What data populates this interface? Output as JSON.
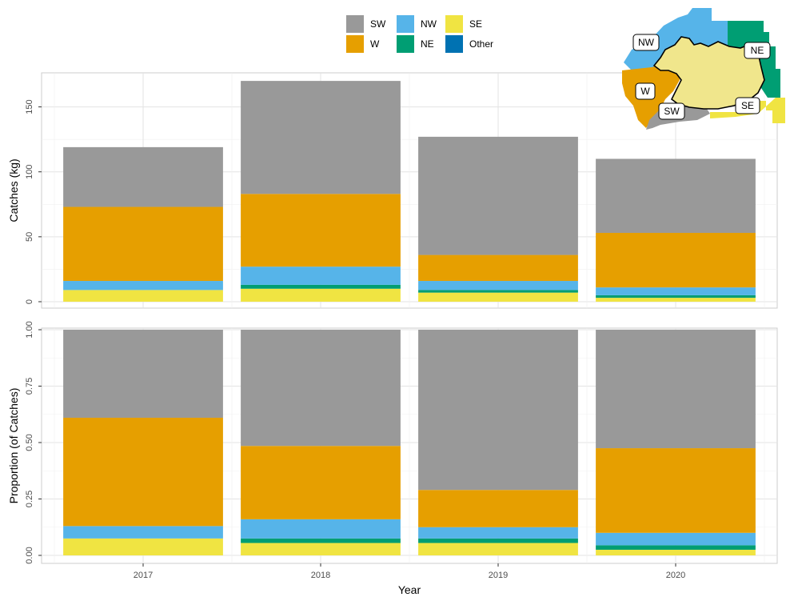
{
  "chart_data": [
    {
      "type": "bar",
      "stacked": true,
      "panel": "top",
      "categories": [
        "2017",
        "2018",
        "2019",
        "2020"
      ],
      "ylabel": "Catches (kg)",
      "ylim": [
        0,
        175
      ],
      "yticks": [
        0,
        50,
        100,
        150
      ],
      "grid": true,
      "series": [
        {
          "name": "SE",
          "values": [
            9,
            10,
            7,
            3
          ]
        },
        {
          "name": "NE",
          "values": [
            0,
            3,
            2,
            2
          ]
        },
        {
          "name": "NW",
          "values": [
            7,
            14,
            7,
            6
          ]
        },
        {
          "name": "W",
          "values": [
            57,
            56,
            20,
            42
          ]
        },
        {
          "name": "SW",
          "values": [
            46,
            87,
            91,
            57
          ]
        },
        {
          "name": "Other",
          "values": [
            0,
            0,
            0,
            0
          ]
        }
      ]
    },
    {
      "type": "bar",
      "stacked": true,
      "panel": "bottom",
      "categories": [
        "2017",
        "2018",
        "2019",
        "2020"
      ],
      "xlabel": "Year",
      "ylabel": "Proportion (of Catches)",
      "ylim": [
        0,
        1.0
      ],
      "yticks": [
        "0.00",
        "0.25",
        "0.50",
        "0.75",
        "1.00"
      ],
      "grid": true,
      "series": [
        {
          "name": "SE",
          "values": [
            0.075,
            0.055,
            0.055,
            0.025
          ]
        },
        {
          "name": "NE",
          "values": [
            0.0,
            0.02,
            0.02,
            0.02
          ]
        },
        {
          "name": "NW",
          "values": [
            0.055,
            0.085,
            0.05,
            0.055
          ]
        },
        {
          "name": "W",
          "values": [
            0.48,
            0.325,
            0.165,
            0.375
          ]
        },
        {
          "name": "SW",
          "values": [
            0.39,
            0.515,
            0.71,
            0.525
          ]
        },
        {
          "name": "Other",
          "values": [
            0,
            0,
            0,
            0
          ]
        }
      ]
    }
  ],
  "legend": {
    "placement": "top-center",
    "items": [
      {
        "name": "SW",
        "color": "#999999"
      },
      {
        "name": "NW",
        "color": "#56B4E9"
      },
      {
        "name": "SE",
        "color": "#F0E442"
      },
      {
        "name": "W",
        "color": "#E69F00"
      },
      {
        "name": "NE",
        "color": "#009E73"
      },
      {
        "name": "Other",
        "color": "#0072B2"
      }
    ]
  },
  "map_inset": {
    "placement": "top-right",
    "labels": [
      "NW",
      "NE",
      "W",
      "SW",
      "SE"
    ],
    "colors": {
      "land": "#F0E68C",
      "NW": "#56B4E9",
      "NE": "#009E73",
      "W": "#E69F00",
      "SW": "#999999",
      "SE": "#F0E442"
    }
  }
}
